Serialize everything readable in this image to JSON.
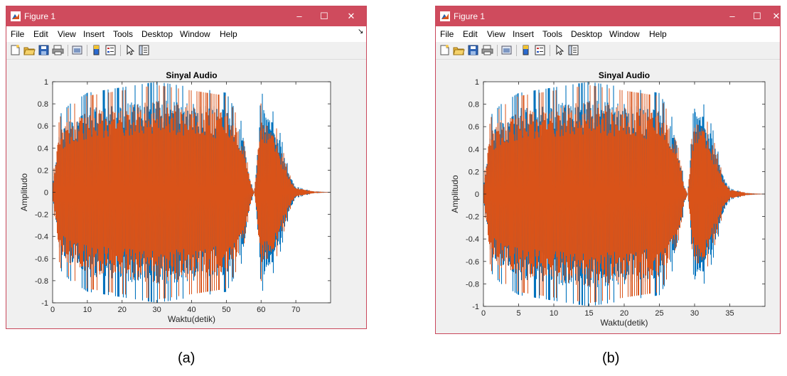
{
  "windows": [
    {
      "id": "a",
      "title": "Figure 1",
      "menu": [
        "File",
        "Edit",
        "View",
        "Insert",
        "Tools",
        "Desktop",
        "Window",
        "Help"
      ],
      "caption": "(a)",
      "chart": {
        "type": "line",
        "title": "Sinyal Audio",
        "xlabel": "Waktu(detik)",
        "ylabel": "Amplitudo",
        "xlim": [
          0,
          80
        ],
        "ylim": [
          -1,
          1
        ],
        "xticks": [
          0,
          10,
          20,
          30,
          40,
          50,
          60,
          70
        ],
        "xticklabels": [
          "0",
          "10",
          "20",
          "30",
          "40",
          "50",
          "60",
          "70"
        ],
        "yticks": [
          -1,
          -0.8,
          -0.6,
          -0.4,
          -0.2,
          0,
          0.2,
          0.4,
          0.6,
          0.8,
          1
        ],
        "yticklabels": [
          "-1",
          "-0.8",
          "-0.6",
          "-0.4",
          "-0.2",
          "0",
          "0.2",
          "0.4",
          "0.6",
          "0.8",
          "1"
        ],
        "grid": false,
        "colors": [
          "#0072BD",
          "#D95319"
        ]
      }
    },
    {
      "id": "b",
      "title": "Figure 1",
      "menu": [
        "File",
        "Edit",
        "View",
        "Insert",
        "Tools",
        "Desktop",
        "Window",
        "Help"
      ],
      "caption": "(b)",
      "chart": {
        "type": "line",
        "title": "Sinyal Audio",
        "xlabel": "Waktu(detik)",
        "ylabel": "Amplitudo",
        "xlim": [
          0,
          40
        ],
        "ylim": [
          -1,
          1
        ],
        "xticks": [
          0,
          5,
          10,
          15,
          20,
          25,
          30,
          35
        ],
        "xticklabels": [
          "0",
          "5",
          "10",
          "15",
          "20",
          "25",
          "30",
          "35"
        ],
        "yticks": [
          -1,
          -0.8,
          -0.6,
          -0.4,
          -0.2,
          0,
          0.2,
          0.4,
          0.6,
          0.8,
          1
        ],
        "yticklabels": [
          "-1",
          "-0.8",
          "-0.6",
          "-0.4",
          "-0.2",
          "0",
          "0.2",
          "0.4",
          "0.6",
          "0.8",
          "1"
        ],
        "grid": false,
        "colors": [
          "#0072BD",
          "#D95319"
        ]
      }
    }
  ],
  "chart_data": [
    {
      "type": "line",
      "title": "Sinyal Audio",
      "xlabel": "Waktu(detik)",
      "ylabel": "Amplitudo",
      "xlim": [
        0,
        80
      ],
      "ylim": [
        -1,
        1
      ],
      "signal_end": 80,
      "segments": [
        [
          0,
          57
        ],
        [
          60,
          80
        ]
      ],
      "series": [
        {
          "color": "#0072BD",
          "envelope_x": [
            0,
            2,
            5,
            10,
            20,
            30,
            40,
            50,
            55,
            57,
            58,
            60,
            62,
            65,
            68,
            70,
            75,
            80
          ],
          "envelope_y": [
            0.1,
            0.7,
            0.8,
            0.9,
            0.95,
            1,
            0.95,
            0.9,
            0.6,
            0.1,
            0.0,
            0.9,
            0.85,
            0.6,
            0.2,
            0.05,
            0.01,
            0
          ]
        },
        {
          "color": "#D95319",
          "envelope_x": [
            0,
            2,
            5,
            10,
            20,
            30,
            40,
            50,
            55,
            57,
            58,
            60,
            62,
            65,
            68,
            70,
            75,
            80
          ],
          "envelope_y": [
            0.1,
            0.7,
            0.8,
            0.9,
            0.95,
            1,
            0.95,
            0.9,
            0.6,
            0.1,
            0.0,
            0.85,
            0.8,
            0.55,
            0.18,
            0.05,
            0.01,
            0
          ]
        }
      ]
    },
    {
      "type": "line",
      "title": "Sinyal Audio",
      "xlabel": "Waktu(detik)",
      "ylabel": "Amplitudo",
      "xlim": [
        0,
        40
      ],
      "ylim": [
        -1,
        1
      ],
      "signal_end": 40,
      "segments": [
        [
          0,
          29
        ],
        [
          30,
          40
        ]
      ],
      "series": [
        {
          "color": "#0072BD",
          "envelope_x": [
            0,
            1,
            2.5,
            5,
            10,
            15,
            20,
            25,
            27.5,
            28.5,
            29,
            30,
            31,
            32.5,
            34,
            35,
            37.5,
            40
          ],
          "envelope_y": [
            0.1,
            0.7,
            0.8,
            0.9,
            0.95,
            1,
            0.95,
            0.9,
            0.6,
            0.1,
            0.0,
            0.9,
            0.85,
            0.6,
            0.2,
            0.05,
            0.01,
            0
          ]
        },
        {
          "color": "#D95319",
          "envelope_x": [
            0,
            1,
            2.5,
            5,
            10,
            15,
            20,
            25,
            27.5,
            28.5,
            29,
            30,
            31,
            32.5,
            34,
            35,
            37.5,
            40
          ],
          "envelope_y": [
            0.1,
            0.7,
            0.8,
            0.9,
            0.95,
            1,
            0.95,
            0.9,
            0.6,
            0.1,
            0.0,
            0.85,
            0.8,
            0.55,
            0.18,
            0.05,
            0.01,
            0
          ]
        }
      ]
    }
  ]
}
